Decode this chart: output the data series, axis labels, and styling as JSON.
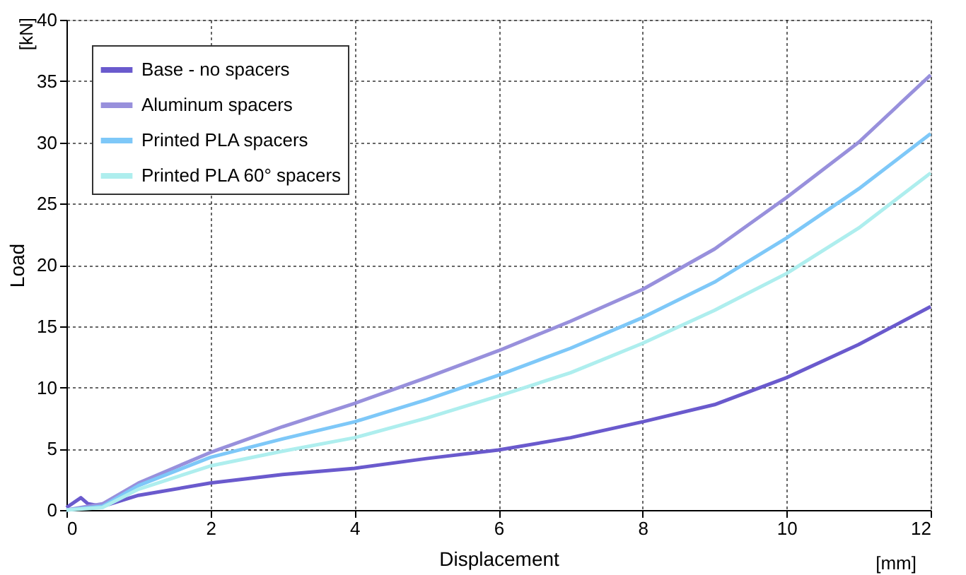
{
  "chart_data": {
    "type": "line",
    "xlabel": "Displacement",
    "ylabel": "Load",
    "annotations": [
      "[mm]",
      "[kN]"
    ],
    "xlim": [
      0,
      12
    ],
    "xticks": [
      0,
      2,
      4,
      6,
      8,
      10,
      12
    ],
    "ylim": [
      0,
      40
    ],
    "yticks": [
      0,
      5,
      10,
      15,
      20,
      25,
      30,
      35,
      40
    ],
    "grid": true,
    "legend": "top left",
    "line_style": "solid",
    "marker": "none",
    "series": [
      {
        "name": "Base - no spacers",
        "color": "#6a5acd",
        "x": [
          0,
          0.2,
          0.3,
          0.5,
          1,
          2,
          3,
          4,
          5,
          6,
          7,
          8,
          9,
          10,
          11,
          12
        ],
        "values": [
          0.2,
          1.0,
          0.5,
          0.3,
          1.2,
          2.2,
          2.9,
          3.4,
          4.2,
          4.9,
          5.9,
          7.2,
          8.6,
          10.8,
          13.5,
          16.6
        ]
      },
      {
        "name": "Aluminum spacers",
        "color": "#9890dc",
        "x": [
          0,
          0.5,
          1,
          2,
          3,
          4,
          5,
          6,
          7,
          8,
          9,
          10,
          11,
          12
        ],
        "values": [
          0,
          0.5,
          2.2,
          4.7,
          6.8,
          8.7,
          10.8,
          13.0,
          15.4,
          18.0,
          21.3,
          25.5,
          30.0,
          35.5
        ]
      },
      {
        "name": "Printed PLA spacers",
        "color": "#7ec8f8",
        "x": [
          0,
          0.5,
          1,
          2,
          3,
          4,
          5,
          6,
          7,
          8,
          9,
          10,
          11,
          12
        ],
        "values": [
          0,
          0.3,
          2.0,
          4.3,
          5.8,
          7.2,
          9.0,
          11.0,
          13.2,
          15.7,
          18.6,
          22.2,
          26.2,
          30.7
        ]
      },
      {
        "name": "Printed PLA 60° spacers",
        "color": "#aeeeee",
        "x": [
          0,
          0.5,
          1,
          2,
          3,
          4,
          5,
          6,
          7,
          8,
          9,
          10,
          11,
          12
        ],
        "values": [
          0,
          0.2,
          1.7,
          3.6,
          4.8,
          5.9,
          7.5,
          9.3,
          11.2,
          13.6,
          16.3,
          19.3,
          23.0,
          27.5
        ]
      }
    ]
  }
}
